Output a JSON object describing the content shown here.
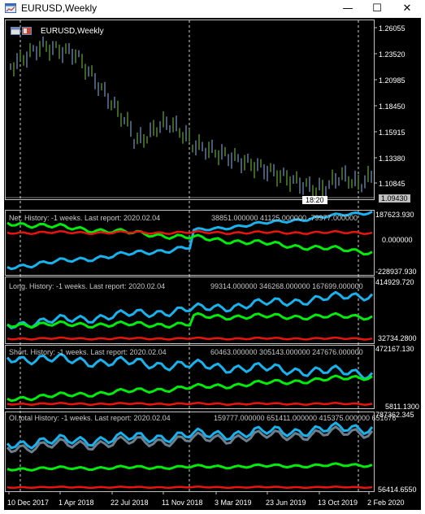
{
  "window": {
    "title": "EURUSD,Weekly",
    "minimize_glyph": "—",
    "maximize_glyph": "☐",
    "close_glyph": "✕"
  },
  "main_chart": {
    "title": "EURUSD,Weekly",
    "price_labels": [
      "1.26055",
      "1.23520",
      "1.20985",
      "1.18450",
      "1.15915",
      "1.13380",
      "1.10845"
    ],
    "current_price": "1.09430",
    "countdown": "18:20"
  },
  "panels": [
    {
      "id": "net",
      "caption": "Net. History: -1 weeks. Last report: 2020.02.04",
      "values": "38851.000000  41125.000000  -79977.000000",
      "scale_labels": [
        "187623.930",
        "0.000000",
        "-228937.930"
      ]
    },
    {
      "id": "long",
      "caption": "Long. History: -1 weeks. Last report: 2020.02.04",
      "values": "99314.000000  346268.000000  167699.000000",
      "scale_labels": [
        "414929.720",
        "32734.2800"
      ]
    },
    {
      "id": "short",
      "caption": "Short. History: -1 weeks. Last report: 2020.02.04",
      "values": "60463.000000  305143.000000  247676.000000",
      "scale_labels": [
        "472167.130",
        "5811.1300"
      ]
    },
    {
      "id": "oi",
      "caption": "OI.total History: -1 weeks. Last report: 2020.02.04",
      "values": "159777.000000  651411.000000  415375.000000  651676",
      "scale_labels": [
        "787362.345",
        "56414.6550"
      ]
    }
  ],
  "time_axis": [
    "10 Dec 2017",
    "1 Apr 2018",
    "22 Jul 2018",
    "11 Nov 2018",
    "3 Mar 2019",
    "23 Jun 2019",
    "13 Oct 2019",
    "2 Feb 2020"
  ],
  "colors": {
    "background": "#000000",
    "axis": "#c0c0c0",
    "grid": "#d0d0d0",
    "candle_up": "#7ac943",
    "candle_down": "#8fb4e8",
    "blue_line": "#1ab2ec",
    "green_line": "#00ea0c",
    "red_line": "#e8150f",
    "gray_line": "#6d7f8d"
  },
  "icons": {
    "app": "chart-window-icon",
    "minimize": "minimize-icon",
    "maximize": "maximize-icon",
    "close": "close-icon"
  }
}
